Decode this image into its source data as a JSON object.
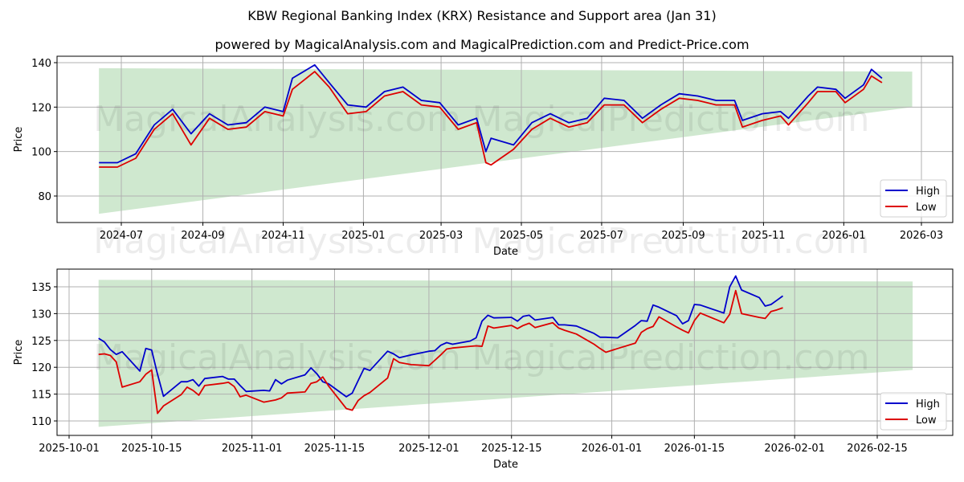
{
  "header": {
    "title": "KBW Regional Banking Index (KRX) Resistance and Support area (Jan 31)",
    "subtitle": "powered by MagicalAnalysis.com and MagicalPrediction.com and Predict-Price.com"
  },
  "watermarks": [
    "MagicalAnalysis.com",
    "MagicalPrediction.com"
  ],
  "colors": {
    "high": "#0000cc",
    "low": "#dd0000",
    "band": "#a8d5a8",
    "grid": "#b0b0b0"
  },
  "chart_data": [
    {
      "type": "line",
      "title": "KBW Regional Banking Index (KRX) Resistance and Support area (Jan 31)",
      "xlabel": "Date",
      "ylabel": "Price",
      "x_ticks": [
        "2024-07",
        "2024-09",
        "2024-11",
        "2025-01",
        "2025-03",
        "2025-05",
        "2025-07",
        "2025-09",
        "2025-11",
        "2026-01",
        "2026-03"
      ],
      "y_ticks": [
        80,
        100,
        120,
        140
      ],
      "ylim": [
        68,
        143
      ],
      "grid": true,
      "legend": {
        "position": "lower right",
        "entries": [
          "High",
          "Low"
        ]
      },
      "band": {
        "label": "Resistance and Support area",
        "start": "2024-06-14",
        "end": "2026-02-22",
        "upper": [
          137.5,
          136.0
        ],
        "lower": [
          72.0,
          120.0
        ]
      },
      "x": [
        "2024-06-14",
        "2024-06-28",
        "2024-07-12",
        "2024-07-26",
        "2024-08-09",
        "2024-08-23",
        "2024-09-06",
        "2024-09-20",
        "2024-10-04",
        "2024-10-18",
        "2024-11-01",
        "2024-11-08",
        "2024-11-25",
        "2024-12-06",
        "2024-12-20",
        "2025-01-03",
        "2025-01-17",
        "2025-01-31",
        "2025-02-14",
        "2025-02-28",
        "2025-03-14",
        "2025-03-28",
        "2025-04-04",
        "2025-04-08",
        "2025-04-25",
        "2025-05-09",
        "2025-05-23",
        "2025-06-06",
        "2025-06-20",
        "2025-07-03",
        "2025-07-18",
        "2025-08-01",
        "2025-08-15",
        "2025-08-29",
        "2025-09-12",
        "2025-09-26",
        "2025-10-10",
        "2025-10-16",
        "2025-10-31",
        "2025-11-14",
        "2025-11-20",
        "2025-12-05",
        "2025-12-12",
        "2025-12-26",
        "2026-01-02",
        "2026-01-16",
        "2026-01-22",
        "2026-01-30"
      ],
      "series": [
        {
          "name": "High",
          "values": [
            95,
            95,
            99,
            112,
            119,
            108,
            117,
            112,
            113,
            120,
            118,
            133,
            139,
            131,
            121,
            120,
            127,
            129,
            123,
            122,
            112,
            115,
            100,
            106,
            103,
            113,
            117,
            113,
            115,
            124,
            123,
            115,
            121,
            126,
            125,
            123,
            123,
            114,
            117,
            118,
            115,
            125,
            129,
            128,
            124,
            130,
            137,
            133
          ]
        },
        {
          "name": "Low",
          "values": [
            93,
            93,
            97,
            110,
            117,
            103,
            115,
            110,
            111,
            118,
            116,
            128,
            136,
            129,
            117,
            118,
            125,
            127,
            121,
            120,
            110,
            113,
            95,
            94,
            101,
            110,
            115,
            111,
            113,
            121,
            121,
            113,
            119,
            124,
            123,
            121,
            121,
            111,
            114,
            116,
            112,
            122,
            127,
            127,
            122,
            128,
            134,
            131
          ]
        }
      ]
    },
    {
      "type": "line",
      "xlabel": "Date",
      "ylabel": "Price",
      "x_ticks": [
        "2025-10-01",
        "2025-10-15",
        "2025-11-01",
        "2025-11-15",
        "2025-12-01",
        "2025-12-15",
        "2026-01-01",
        "2026-01-15",
        "2026-02-01",
        "2026-02-15"
      ],
      "y_ticks": [
        110,
        115,
        120,
        125,
        130,
        135
      ],
      "ylim": [
        107.7,
        138.4
      ],
      "grid": true,
      "legend": {
        "position": "lower right",
        "entries": [
          "High",
          "Low"
        ]
      },
      "band": {
        "label": "Resistance and Support area",
        "start": "2025-10-06",
        "end": "2026-02-21",
        "upper": [
          136.3,
          136.0
        ],
        "lower": [
          108.9,
          119.5
        ]
      },
      "x": [
        "2025-10-06",
        "2025-10-07",
        "2025-10-08",
        "2025-10-09",
        "2025-10-10",
        "2025-10-13",
        "2025-10-14",
        "2025-10-15",
        "2025-10-16",
        "2025-10-17",
        "2025-10-20",
        "2025-10-21",
        "2025-10-22",
        "2025-10-23",
        "2025-10-24",
        "2025-10-27",
        "2025-10-28",
        "2025-10-29",
        "2025-10-30",
        "2025-10-31",
        "2025-11-03",
        "2025-11-04",
        "2025-11-05",
        "2025-11-06",
        "2025-11-07",
        "2025-11-10",
        "2025-11-11",
        "2025-11-12",
        "2025-11-13",
        "2025-11-14",
        "2025-11-17",
        "2025-11-18",
        "2025-11-19",
        "2025-11-20",
        "2025-11-21",
        "2025-11-24",
        "2025-11-25",
        "2025-11-26",
        "2025-11-28",
        "2025-12-01",
        "2025-12-02",
        "2025-12-03",
        "2025-12-04",
        "2025-12-05",
        "2025-12-08",
        "2025-12-09",
        "2025-12-10",
        "2025-12-11",
        "2025-12-12",
        "2025-12-15",
        "2025-12-16",
        "2025-12-17",
        "2025-12-18",
        "2025-12-19",
        "2025-12-22",
        "2025-12-23",
        "2025-12-24",
        "2025-12-26",
        "2025-12-29",
        "2025-12-30",
        "2025-12-31",
        "2026-01-02",
        "2026-01-05",
        "2026-01-06",
        "2026-01-07",
        "2026-01-08",
        "2026-01-09",
        "2026-01-12",
        "2026-01-13",
        "2026-01-14",
        "2026-01-15",
        "2026-01-16",
        "2026-01-20",
        "2026-01-21",
        "2026-01-22",
        "2026-01-23",
        "2026-01-26",
        "2026-01-27",
        "2026-01-28",
        "2026-01-29",
        "2026-01-30"
      ],
      "series": [
        {
          "name": "High",
          "values": [
            125.4,
            124.7,
            123.3,
            122.4,
            122.9,
            119.3,
            123.5,
            123.2,
            118.7,
            114.6,
            117.3,
            117.3,
            117.7,
            116.5,
            117.9,
            118.3,
            117.8,
            117.8,
            116.6,
            115.5,
            115.7,
            115.6,
            117.7,
            116.9,
            117.6,
            118.6,
            119.9,
            118.8,
            117.3,
            116.9,
            114.5,
            115.2,
            117.5,
            119.8,
            119.4,
            123.0,
            122.5,
            121.8,
            122.3,
            123.0,
            123.1,
            124.1,
            124.6,
            124.3,
            124.9,
            125.5,
            128.6,
            129.7,
            129.2,
            129.3,
            128.6,
            129.5,
            129.7,
            128.8,
            129.3,
            127.9,
            127.9,
            127.7,
            126.3,
            125.6,
            125.6,
            125.5,
            127.8,
            128.7,
            128.6,
            131.6,
            131.2,
            129.6,
            128.1,
            128.7,
            131.7,
            131.6,
            130.1,
            135.0,
            137.0,
            134.4,
            133.0,
            131.4,
            131.7,
            132.5,
            133.3
          ]
        },
        {
          "name": "Low",
          "values": [
            122.4,
            122.5,
            122.2,
            121.0,
            116.3,
            117.3,
            118.7,
            119.5,
            111.4,
            112.8,
            114.9,
            116.3,
            115.7,
            114.8,
            116.6,
            117.0,
            117.2,
            116.4,
            114.5,
            114.8,
            113.5,
            113.7,
            113.9,
            114.3,
            115.2,
            115.4,
            117.0,
            117.3,
            118.2,
            116.5,
            112.3,
            112.0,
            113.8,
            114.7,
            115.3,
            118.0,
            121.6,
            120.9,
            120.5,
            120.3,
            121.3,
            122.3,
            123.4,
            123.6,
            123.9,
            124.0,
            123.9,
            127.7,
            127.3,
            127.8,
            127.2,
            127.8,
            128.2,
            127.4,
            128.3,
            127.3,
            126.9,
            126.2,
            124.3,
            123.5,
            122.8,
            123.5,
            124.5,
            126.5,
            127.2,
            127.6,
            129.4,
            127.5,
            126.9,
            126.4,
            128.7,
            130.1,
            128.3,
            129.9,
            134.3,
            130.0,
            129.3,
            129.1,
            130.4,
            130.7,
            131.1
          ]
        }
      ]
    }
  ]
}
